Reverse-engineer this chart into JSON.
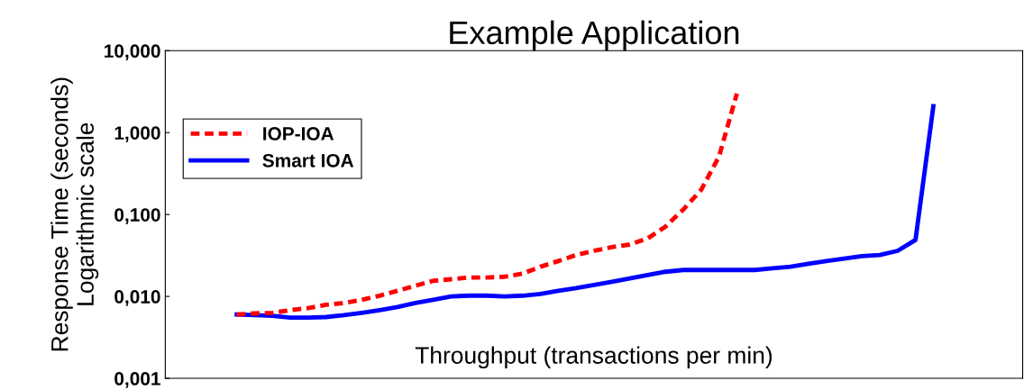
{
  "chart_data": {
    "type": "line",
    "title": "Example Application",
    "xlabel": "Throughput (transactions per min)",
    "ylabel": "Response Time (seconds)\nLogarithmic scale",
    "categories": [
      null,
      null,
      null,
      null,
      null,
      null,
      null,
      null,
      null,
      null,
      null,
      null,
      null,
      null,
      null,
      null,
      null,
      null,
      null,
      null,
      null,
      null,
      null,
      null,
      null,
      null,
      null,
      null,
      null,
      null,
      null,
      null,
      null,
      null,
      null,
      null,
      null,
      null,
      null,
      null
    ],
    "series": [
      {
        "name": "IOP-IOA",
        "color": "#ff0000",
        "line_style": "dashed",
        "values": [
          0.006,
          0.0062,
          0.0063,
          0.0068,
          0.0072,
          0.0079,
          0.0083,
          0.0091,
          0.0102,
          0.0117,
          0.0135,
          0.0155,
          0.0162,
          0.017,
          0.017,
          0.0174,
          0.019,
          0.023,
          0.027,
          0.032,
          0.036,
          0.04,
          0.043,
          0.051,
          0.071,
          0.115,
          0.2,
          0.51,
          3.0,
          null,
          null,
          null,
          null,
          null,
          null,
          null,
          null,
          null,
          null,
          null
        ]
      },
      {
        "name": "Smart IOA",
        "color": "#0000ff",
        "line_style": "solid",
        "values": [
          0.006,
          0.0059,
          0.0058,
          0.0055,
          0.0055,
          0.0056,
          0.0059,
          0.0063,
          0.0068,
          0.0074,
          0.0083,
          0.0091,
          0.01,
          0.0102,
          0.0102,
          0.01,
          0.0102,
          0.0107,
          0.0117,
          0.0126,
          0.0138,
          0.0151,
          0.0166,
          0.0182,
          0.02,
          0.021,
          0.021,
          0.021,
          0.021,
          0.021,
          0.022,
          0.023,
          0.025,
          0.027,
          0.029,
          0.031,
          0.032,
          0.036,
          0.049,
          2.1
        ]
      }
    ],
    "log": "y",
    "ylim": [
      0.001,
      10
    ],
    "yticks": [
      {
        "value": 0.001,
        "label": "0,001"
      },
      {
        "value": 0.01,
        "label": "0,010"
      },
      {
        "value": 0.1,
        "label": "0,100"
      },
      {
        "value": 1,
        "label": "1,000"
      },
      {
        "value": 10,
        "label": "10,000"
      }
    ],
    "tick_labels": "y",
    "grid": false,
    "legend": "top left"
  }
}
